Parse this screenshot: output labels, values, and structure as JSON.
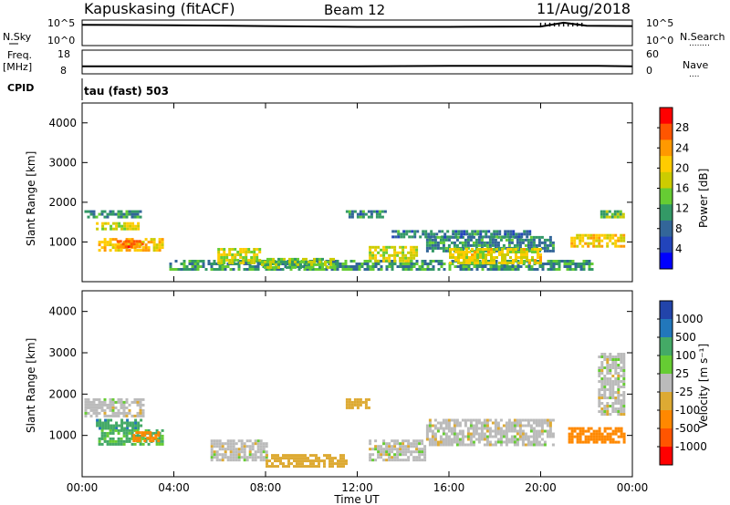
{
  "header": {
    "station": "Kapuskasing (fitACF)",
    "beam": "Beam 12",
    "date": "11/Aug/2018"
  },
  "noise_panel": {
    "left_label": "N.Sky",
    "left_ticks": [
      "10^5",
      "10^0"
    ],
    "right_ticks": [
      "10^5",
      "10^0"
    ],
    "right_label": "N.Search",
    "right_label_dots": "........"
  },
  "freq_panel": {
    "left_label_line1": "Freq.",
    "left_label_line2": "[MHz]",
    "left_ticks": [
      "18",
      "8"
    ],
    "right_ticks": [
      "60",
      "0"
    ],
    "right_label": "Nave",
    "right_label_dots": "...."
  },
  "cpid": {
    "label": "CPID",
    "value": "tau (fast) 503"
  },
  "power_panel": {
    "ylabel": "Slant Range [km]",
    "yticks": [
      "4000",
      "3000",
      "2000",
      "1000"
    ],
    "colorbar_label": "Power [dB]",
    "colorbar_ticks": [
      "28",
      "24",
      "20",
      "16",
      "12",
      "8",
      "4"
    ],
    "colorbar_colors": [
      "#ff0000",
      "#ff5500",
      "#ff9900",
      "#ffcc00",
      "#cccc00",
      "#66cc33",
      "#339966",
      "#336699",
      "#2244bb",
      "#0000ff"
    ]
  },
  "velocity_panel": {
    "ylabel": "Slant Range [km]",
    "yticks": [
      "4000",
      "3000",
      "2000",
      "1000"
    ],
    "colorbar_label": "Velocity [m s⁻¹]",
    "colorbar_ticks": [
      "1000",
      "500",
      "100",
      "25",
      "-25",
      "-100",
      "-500",
      "-1000"
    ],
    "colorbar_colors": [
      "#2244aa",
      "#2277bb",
      "#44aa66",
      "#66cc33",
      "#bbbbbb",
      "#ddaa33",
      "#ff8800",
      "#ff5500",
      "#ff0000"
    ]
  },
  "xaxis": {
    "label": "Time UT",
    "ticks": [
      "00:00",
      "04:00",
      "08:00",
      "12:00",
      "16:00",
      "20:00",
      "00:00"
    ]
  },
  "chart_data": [
    {
      "type": "line",
      "title": "N.Sky",
      "x": [
        "00:00",
        "04:00",
        "08:00",
        "12:00",
        "16:00",
        "20:00",
        "21:00",
        "22:00",
        "24:00"
      ],
      "values": [
        4.5,
        4.4,
        4.2,
        4.0,
        4.0,
        4.1,
        5.0,
        4.3,
        4.2
      ]
    },
    {
      "type": "line",
      "title": "Freq.",
      "x": [
        "00:00",
        "12:00",
        "16:00",
        "22:30",
        "24:00"
      ],
      "values": [
        10.5,
        10.5,
        10.7,
        10.7,
        10.5
      ],
      "ylim": [
        8,
        18
      ]
    },
    {
      "type": "heatmap",
      "title": "Power [dB]",
      "xrange": [
        "00:00",
        "24:00"
      ],
      "ylim": [
        0,
        4500
      ],
      "ylabel": "Slant Range [km]",
      "regions": [
        {
          "t0": 0.1,
          "t1": 2.6,
          "r0": 1600,
          "r1": 1800,
          "value": 10
        },
        {
          "t0": 0.6,
          "t1": 2.4,
          "r0": 1300,
          "r1": 1500,
          "value": 18
        },
        {
          "t0": 0.7,
          "t1": 3.5,
          "r0": 800,
          "r1": 1100,
          "value": 21
        },
        {
          "t0": 1.5,
          "t1": 2.6,
          "r0": 850,
          "r1": 1050,
          "value": 26
        },
        {
          "t0": 3.8,
          "t1": 22.3,
          "r0": 300,
          "r1": 550,
          "value": 10
        },
        {
          "t0": 5.9,
          "t1": 7.8,
          "r0": 450,
          "r1": 850,
          "value": 17
        },
        {
          "t0": 7.8,
          "t1": 11.0,
          "r0": 350,
          "r1": 600,
          "value": 14
        },
        {
          "t0": 12.5,
          "t1": 14.6,
          "r0": 500,
          "r1": 900,
          "value": 17
        },
        {
          "t0": 15.0,
          "t1": 20.5,
          "r0": 800,
          "r1": 1150,
          "value": 9
        },
        {
          "t0": 16.0,
          "t1": 20.0,
          "r0": 500,
          "r1": 850,
          "value": 18
        },
        {
          "t0": 21.3,
          "t1": 23.6,
          "r0": 900,
          "r1": 1200,
          "value": 20
        },
        {
          "t0": 22.6,
          "t1": 23.6,
          "r0": 1600,
          "r1": 1800,
          "value": 13
        },
        {
          "t0": 11.5,
          "t1": 13.2,
          "r0": 1600,
          "r1": 1800,
          "value": 8
        },
        {
          "t0": 13.5,
          "t1": 19.5,
          "r0": 1100,
          "r1": 1300,
          "value": 8
        }
      ]
    },
    {
      "type": "heatmap",
      "title": "Velocity [m s⁻¹]",
      "xrange": [
        "00:00",
        "24:00"
      ],
      "ylim": [
        0,
        4500
      ],
      "ylabel": "Slant Range [km]",
      "regions": [
        {
          "t0": 0.1,
          "t1": 2.7,
          "r0": 1500,
          "r1": 1900,
          "value": 0
        },
        {
          "t0": 0.6,
          "t1": 2.6,
          "r0": 1150,
          "r1": 1400,
          "value": 80
        },
        {
          "t0": 0.7,
          "t1": 3.5,
          "r0": 800,
          "r1": 1150,
          "value": 60
        },
        {
          "t0": 2.2,
          "t1": 3.3,
          "r0": 850,
          "r1": 1100,
          "value": -150
        },
        {
          "t0": 5.6,
          "t1": 8.0,
          "r0": 400,
          "r1": 900,
          "value": 0
        },
        {
          "t0": 8.0,
          "t1": 11.5,
          "r0": 250,
          "r1": 550,
          "value": -60
        },
        {
          "t0": 12.5,
          "t1": 15.0,
          "r0": 400,
          "r1": 900,
          "value": 0
        },
        {
          "t0": 15.0,
          "t1": 20.5,
          "r0": 800,
          "r1": 1400,
          "value": 0
        },
        {
          "t0": 21.2,
          "t1": 23.6,
          "r0": 850,
          "r1": 1200,
          "value": -150
        },
        {
          "t0": 22.5,
          "t1": 23.6,
          "r0": 1500,
          "r1": 3000,
          "value": 0
        },
        {
          "t0": 11.5,
          "t1": 12.5,
          "r0": 1700,
          "r1": 1900,
          "value": -60
        }
      ]
    }
  ]
}
